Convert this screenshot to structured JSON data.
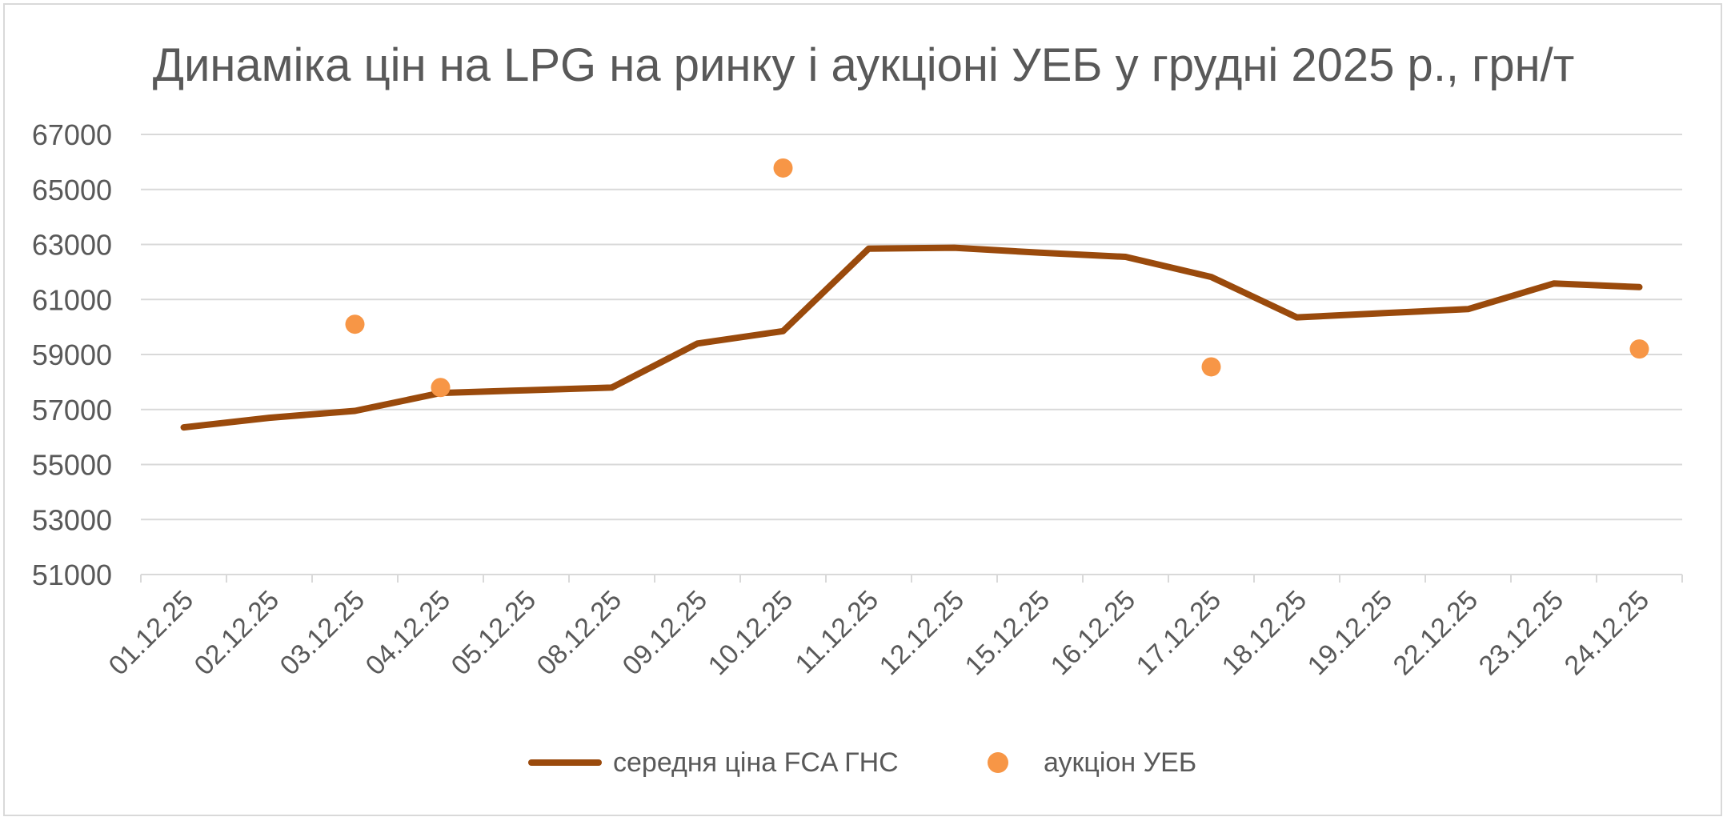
{
  "chart_data": {
    "type": "line",
    "title": "Динаміка цін на LPG на ринку і аукціоні УЕБ у грудні 2025 р., грн/т",
    "xlabel": "",
    "ylabel": "",
    "categories": [
      "01.12.25",
      "02.12.25",
      "03.12.25",
      "04.12.25",
      "05.12.25",
      "08.12.25",
      "09.12.25",
      "10.12.25",
      "11.12.25",
      "12.12.25",
      "15.12.25",
      "16.12.25",
      "17.12.25",
      "18.12.25",
      "19.12.25",
      "22.12.25",
      "23.12.25",
      "24.12.25"
    ],
    "ylim": [
      51000,
      67000
    ],
    "yticks": [
      51000,
      53000,
      55000,
      57000,
      59000,
      61000,
      63000,
      65000,
      67000
    ],
    "grid": true,
    "legend_position": "bottom",
    "series": [
      {
        "name": "середня ціна FCA ГНС",
        "kind": "line",
        "color": "#9a4a0c",
        "values": [
          56350,
          56700,
          56950,
          57600,
          57700,
          57800,
          59400,
          59850,
          62850,
          62880,
          62700,
          62550,
          61820,
          60350,
          60500,
          60650,
          61580,
          61450
        ]
      },
      {
        "name": "аукціон УЕБ",
        "kind": "scatter",
        "color": "#f79646",
        "values": [
          null,
          null,
          60100,
          57800,
          null,
          null,
          null,
          65780,
          null,
          null,
          null,
          null,
          58550,
          null,
          null,
          null,
          null,
          59200
        ]
      }
    ]
  }
}
